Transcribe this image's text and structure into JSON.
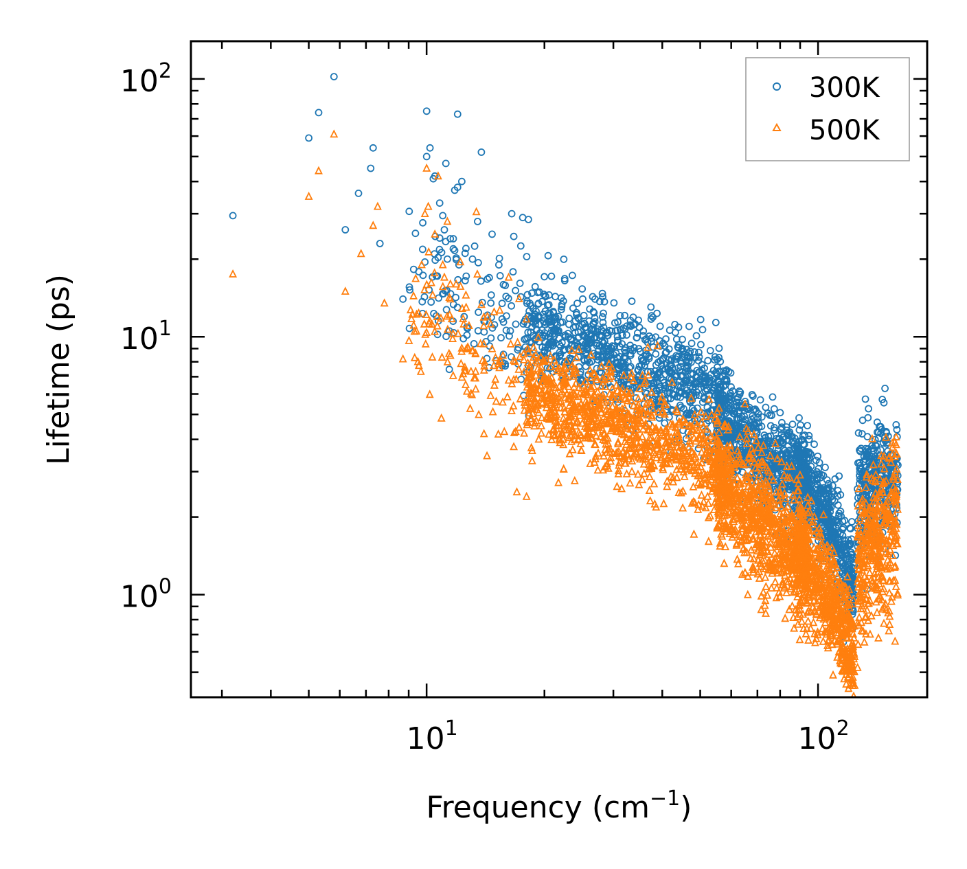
{
  "chart_data": {
    "type": "scatter",
    "title": "",
    "xscale": "log",
    "yscale": "log",
    "xlabel": {
      "text": "Frequency (cm",
      "sup": "−1",
      "suffix": ")"
    },
    "ylabel": "Lifetime (ps)",
    "xlim": [
      2.5,
      190
    ],
    "ylim": [
      0.4,
      140
    ],
    "xticks": [
      {
        "value": 10,
        "base": "10",
        "exp": "1"
      },
      {
        "value": 100,
        "base": "10",
        "exp": "2"
      }
    ],
    "yticks": [
      {
        "value": 1,
        "base": "10",
        "exp": "0"
      },
      {
        "value": 10,
        "base": "10",
        "exp": "1"
      },
      {
        "value": 100,
        "base": "10",
        "exp": "2"
      }
    ],
    "legend": {
      "placement": "top-right"
    },
    "series": [
      {
        "name": "300K",
        "marker": "circle",
        "color": "#1f77b4",
        "outliers": [
          [
            3.2,
            29.5
          ],
          [
            5.0,
            59
          ],
          [
            5.3,
            74
          ],
          [
            5.8,
            102
          ],
          [
            6.2,
            26
          ],
          [
            6.7,
            36
          ],
          [
            7.2,
            45
          ],
          [
            7.3,
            54
          ],
          [
            7.6,
            23
          ],
          [
            8.7,
            14
          ],
          [
            9.9,
            19.5
          ],
          [
            10.0,
            75
          ],
          [
            10.0,
            50
          ],
          [
            10.2,
            54
          ],
          [
            10.4,
            41
          ],
          [
            10.5,
            42
          ],
          [
            10.8,
            33
          ],
          [
            11.0,
            29.5
          ],
          [
            11.1,
            26
          ],
          [
            11.2,
            47
          ],
          [
            11.3,
            20
          ],
          [
            11.5,
            24
          ],
          [
            11.7,
            24
          ],
          [
            11.8,
            37
          ],
          [
            12.0,
            73
          ],
          [
            12.0,
            38
          ],
          [
            12.1,
            19
          ],
          [
            12.3,
            40
          ],
          [
            12.6,
            22
          ],
          [
            13.1,
            20
          ],
          [
            13.5,
            28
          ],
          [
            13.8,
            52
          ],
          [
            14.7,
            25
          ],
          [
            15.3,
            19
          ],
          [
            16.5,
            30
          ],
          [
            16.7,
            24.5
          ],
          [
            17.4,
            22.5
          ],
          [
            17.6,
            29
          ],
          [
            18.2,
            28.5
          ]
        ],
        "bands": [
          {
            "x": [
              9,
              18
            ],
            "center": [
              17,
              11
            ],
            "spread": 0.22,
            "n": 120
          },
          {
            "x": [
              18,
              60
            ],
            "center": [
              11,
              5.6
            ],
            "spread": 0.18,
            "n": 900
          },
          {
            "x": [
              55,
              95
            ],
            "center": [
              4.6,
              2.6
            ],
            "spread": 0.17,
            "n": 700
          },
          {
            "x": [
              88,
              100
            ],
            "center": [
              3.0,
              2.2
            ],
            "spread": 0.18,
            "n": 180
          },
          {
            "x": [
              100,
              124
            ],
            "center": [
              2.3,
              1.05
            ],
            "spread": 0.17,
            "n": 350
          },
          {
            "x": [
              126,
              160
            ],
            "center": [
              2.6,
              3.0
            ],
            "spread": 0.22,
            "n": 350
          }
        ]
      },
      {
        "name": "500K",
        "marker": "triangle",
        "color": "#ff7f0e",
        "outliers": [
          [
            3.2,
            17.5
          ],
          [
            5.0,
            35
          ],
          [
            5.3,
            44
          ],
          [
            5.8,
            61
          ],
          [
            6.2,
            15
          ],
          [
            6.8,
            21
          ],
          [
            7.3,
            27
          ],
          [
            7.5,
            32
          ],
          [
            7.8,
            13.5
          ],
          [
            8.7,
            8.2
          ],
          [
            9.5,
            8.0
          ],
          [
            9.9,
            30
          ],
          [
            10.0,
            45
          ],
          [
            10.1,
            32
          ],
          [
            10.5,
            25
          ],
          [
            10.7,
            42
          ],
          [
            11.0,
            19
          ],
          [
            11.1,
            17
          ],
          [
            11.3,
            28
          ],
          [
            11.5,
            14
          ],
          [
            11.9,
            16
          ],
          [
            12.2,
            19.5
          ],
          [
            12.6,
            14.5
          ],
          [
            13.4,
            30.5
          ],
          [
            14.3,
            12
          ],
          [
            15.0,
            8.3
          ],
          [
            16.2,
            17
          ],
          [
            17.0,
            2.5
          ],
          [
            18.0,
            2.4
          ],
          [
            18.6,
            3.3
          ]
        ],
        "bands": [
          {
            "x": [
              9,
              18
            ],
            "center": [
              12,
              6.5
            ],
            "spread": 0.22,
            "n": 140
          },
          {
            "x": [
              18,
              60
            ],
            "center": [
              6.2,
              3.0
            ],
            "spread": 0.18,
            "n": 1000
          },
          {
            "x": [
              55,
              95
            ],
            "center": [
              2.8,
              1.25
            ],
            "spread": 0.22,
            "n": 900
          },
          {
            "x": [
              88,
              100
            ],
            "center": [
              1.6,
              1.1
            ],
            "spread": 0.2,
            "n": 200
          },
          {
            "x": [
              100,
              124
            ],
            "center": [
              1.2,
              0.58
            ],
            "spread": 0.18,
            "n": 400
          },
          {
            "x": [
              126,
              160
            ],
            "center": [
              1.3,
              1.9
            ],
            "spread": 0.28,
            "n": 400
          }
        ]
      }
    ]
  }
}
